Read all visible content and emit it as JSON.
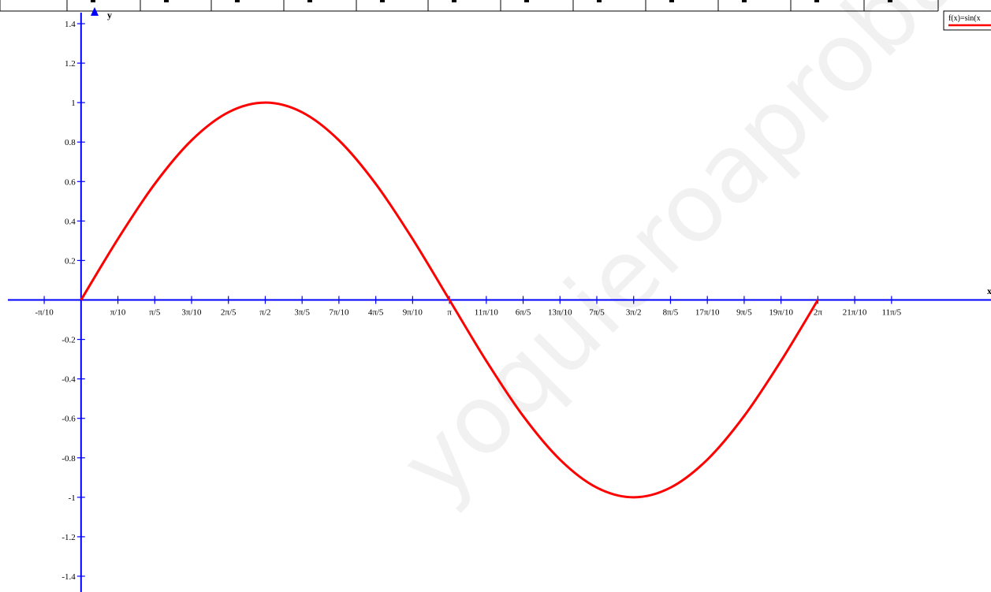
{
  "chart_data": {
    "type": "line",
    "title": "",
    "xlabel": "x",
    "ylabel": "y",
    "xlim": [
      -0.6912,
      7.7597
    ],
    "ylim": [
      -1.48,
      1.52
    ],
    "x_ticks": [
      {
        "label": "-π/10",
        "value": -0.31416
      },
      {
        "label": "π/10",
        "value": 0.31416
      },
      {
        "label": "π/5",
        "value": 0.62832
      },
      {
        "label": "3π/10",
        "value": 0.94248
      },
      {
        "label": "2π/5",
        "value": 1.25664
      },
      {
        "label": "π/2",
        "value": 1.5708
      },
      {
        "label": "3π/5",
        "value": 1.88496
      },
      {
        "label": "7π/10",
        "value": 2.19911
      },
      {
        "label": "4π/5",
        "value": 2.51327
      },
      {
        "label": "9π/10",
        "value": 2.82743
      },
      {
        "label": "π",
        "value": 3.14159
      },
      {
        "label": "11π/10",
        "value": 3.45575
      },
      {
        "label": "6π/5",
        "value": 3.76991
      },
      {
        "label": "13π/10",
        "value": 4.08407
      },
      {
        "label": "7π/5",
        "value": 4.39823
      },
      {
        "label": "3π/2",
        "value": 4.71239
      },
      {
        "label": "8π/5",
        "value": 5.02655
      },
      {
        "label": "17π/10",
        "value": 5.34071
      },
      {
        "label": "9π/5",
        "value": 5.65487
      },
      {
        "label": "19π/10",
        "value": 5.96903
      },
      {
        "label": "2π",
        "value": 6.28319
      },
      {
        "label": "21π/10",
        "value": 6.59734
      },
      {
        "label": "11π/5",
        "value": 6.9115
      }
    ],
    "y_ticks": [
      {
        "label": "1.4",
        "value": 1.4
      },
      {
        "label": "1.2",
        "value": 1.2
      },
      {
        "label": "1",
        "value": 1.0
      },
      {
        "label": "0.8",
        "value": 0.8
      },
      {
        "label": "0.6",
        "value": 0.6
      },
      {
        "label": "0.4",
        "value": 0.4
      },
      {
        "label": "0.2",
        "value": 0.2
      },
      {
        "label": "-0.2",
        "value": -0.2
      },
      {
        "label": "-0.4",
        "value": -0.4
      },
      {
        "label": "-0.6",
        "value": -0.6
      },
      {
        "label": "-0.8",
        "value": -0.8
      },
      {
        "label": "-1",
        "value": -1.0
      },
      {
        "label": "-1.2",
        "value": -1.2
      },
      {
        "label": "-1.4",
        "value": -1.4
      }
    ],
    "series": [
      {
        "name": "f(x)=sin(x",
        "color": "#ff0000",
        "x": [
          0,
          0.31416,
          0.62832,
          0.94248,
          1.25664,
          1.5708,
          1.88496,
          2.19911,
          2.51327,
          2.82743,
          3.14159,
          3.45575,
          3.76991,
          4.08407,
          4.39823,
          4.71239,
          5.02655,
          5.34071,
          5.65487,
          5.96903,
          6.28319
        ],
        "y": [
          0,
          0.309,
          0.588,
          0.809,
          0.951,
          1,
          0.951,
          0.809,
          0.588,
          0.309,
          0,
          -0.309,
          -0.588,
          -0.809,
          -0.951,
          -1,
          -0.951,
          -0.809,
          -0.588,
          -0.309,
          0
        ]
      }
    ],
    "axis_color": "#0000ff",
    "grid": false,
    "legend_position": "top-right"
  },
  "watermark_text": "yoquieroaprobar.es"
}
